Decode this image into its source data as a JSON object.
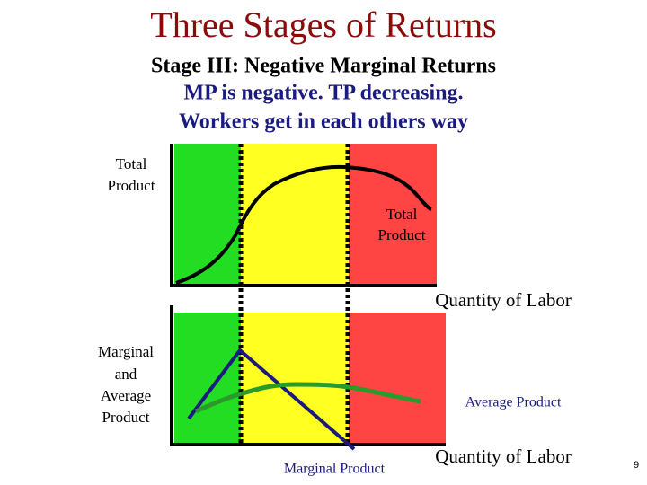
{
  "header": {
    "title": "Three Stages of Returns",
    "subtitle": [
      "Stage III: Negative Marginal Returns",
      "MP is negative. TP decreasing.",
      "Workers get in each others way"
    ]
  },
  "top_chart": {
    "y_label": [
      "Total",
      "Product"
    ],
    "curve_label": [
      "Total",
      "Product"
    ],
    "x_label": "Quantity of Labor"
  },
  "bottom_chart": {
    "y_label": [
      "Marginal",
      "and",
      "Average",
      "Product"
    ],
    "average_label": "Average Product",
    "marginal_label": "Marginal Product",
    "x_label": "Quantity of Labor"
  },
  "page_number": "9"
}
